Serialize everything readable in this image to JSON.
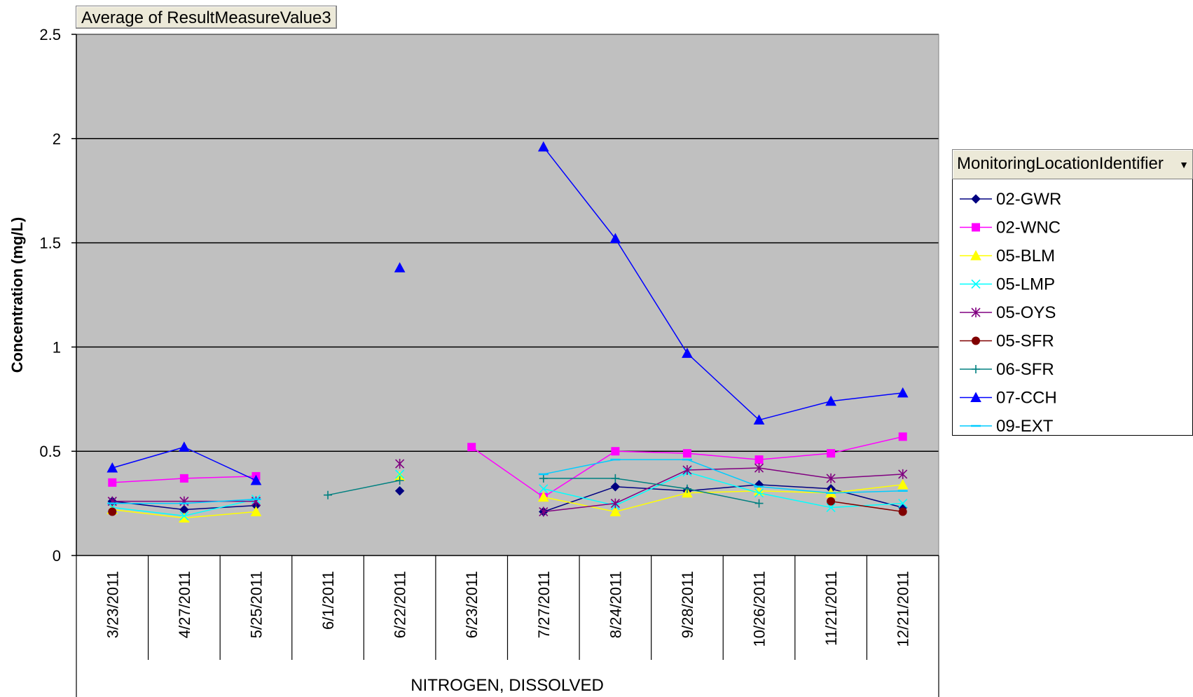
{
  "pivot_field_button": "Average of ResultMeasureValue3",
  "legend": {
    "header": "MonitoringLocationIdentifier",
    "dropdown_icon": "dropdown-arrow-icon"
  },
  "colors": {
    "plot_background": "#c0c0c0",
    "gridline": "#000000"
  },
  "chart_data": {
    "type": "line",
    "title": "",
    "ylabel": "Concentration (mg/L)",
    "xlabel": "NITROGEN, DISSOLVED",
    "ylim": [
      0,
      2.5
    ],
    "yticks": [
      "0",
      "0.5",
      "1",
      "1.5",
      "2",
      "2.5"
    ],
    "ytick_values": [
      0,
      0.5,
      1,
      1.5,
      2,
      2.5
    ],
    "grid": true,
    "legend_position": "right",
    "categories": [
      "3/23/2011",
      "4/27/2011",
      "5/25/2011",
      "6/1/2011",
      "6/22/2011",
      "6/23/2011",
      "7/27/2011",
      "8/24/2011",
      "9/28/2011",
      "10/26/2011",
      "11/21/2011",
      "12/21/2011"
    ],
    "series": [
      {
        "name": "02-GWR",
        "color": "#000080",
        "marker": "diamond",
        "values": [
          0.26,
          0.22,
          0.24,
          null,
          0.31,
          null,
          0.21,
          0.33,
          0.31,
          0.34,
          0.32,
          0.23
        ]
      },
      {
        "name": "02-WNC",
        "color": "#ff00ff",
        "marker": "square",
        "values": [
          0.35,
          0.37,
          0.38,
          null,
          null,
          0.52,
          0.28,
          0.5,
          0.49,
          0.46,
          0.49,
          0.57
        ]
      },
      {
        "name": "05-BLM",
        "color": "#ffff00",
        "marker": "triangle",
        "values": [
          0.22,
          0.18,
          0.21,
          null,
          0.38,
          null,
          0.28,
          0.21,
          0.3,
          0.31,
          0.3,
          0.34
        ]
      },
      {
        "name": "05-LMP",
        "color": "#00ffff",
        "marker": "x",
        "values": [
          0.23,
          0.19,
          0.27,
          null,
          0.39,
          null,
          0.32,
          0.24,
          0.4,
          0.3,
          0.23,
          0.25
        ]
      },
      {
        "name": "05-OYS",
        "color": "#800080",
        "marker": "star",
        "values": [
          0.26,
          0.26,
          0.26,
          null,
          0.44,
          null,
          0.21,
          0.25,
          0.41,
          0.42,
          0.37,
          0.39
        ]
      },
      {
        "name": "05-SFR",
        "color": "#800000",
        "marker": "circle",
        "values": [
          0.21,
          null,
          null,
          null,
          null,
          null,
          null,
          null,
          null,
          null,
          0.26,
          0.21
        ]
      },
      {
        "name": "06-SFR",
        "color": "#008080",
        "marker": "plus",
        "values": [
          null,
          null,
          null,
          0.29,
          0.36,
          null,
          0.37,
          0.37,
          0.32,
          0.25,
          null,
          null
        ]
      },
      {
        "name": "07-CCH",
        "color": "#0000ff",
        "marker": "triangle",
        "values": [
          0.42,
          0.52,
          0.36,
          null,
          1.38,
          null,
          1.96,
          1.52,
          0.97,
          0.65,
          0.74,
          0.78
        ]
      },
      {
        "name": "09-EXT",
        "color": "#00ccff",
        "marker": "dash",
        "values": [
          0.25,
          0.25,
          0.27,
          null,
          null,
          null,
          0.39,
          0.46,
          0.46,
          0.33,
          0.3,
          0.31
        ]
      }
    ]
  }
}
